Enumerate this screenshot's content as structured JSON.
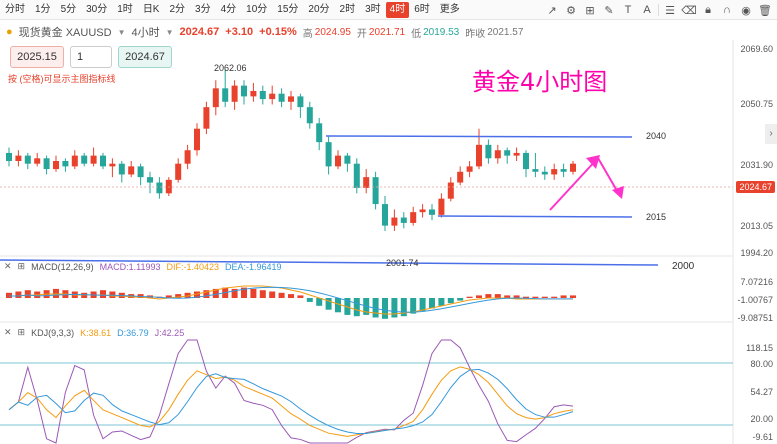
{
  "toolbar": {
    "timeframes": [
      "分时",
      "1分",
      "5分",
      "30分",
      "1时",
      "日K",
      "2分",
      "3分",
      "4分",
      "10分",
      "15分",
      "20分",
      "2时",
      "3时",
      "4时",
      "6时",
      "更多"
    ],
    "active_index": 14,
    "tool_icons": [
      "trend-line-icon",
      "settings-icon",
      "ruler-icon",
      "pen-icon",
      "text-icon",
      "font-size-icon",
      "sliders-icon",
      "eraser-icon",
      "lock-icon",
      "magnet-icon",
      "eye-icon",
      "trash-icon"
    ]
  },
  "symbol": {
    "name": "现货黄金 XAUUSD",
    "period": "4小时",
    "price": "2024.67",
    "change": "+3.10",
    "change_pct": "+0.15%",
    "high_label": "高",
    "high": "2024.95",
    "open_label": "开",
    "open": "2021.71",
    "low_label": "低",
    "low": "2019.53",
    "prev_label": "昨收",
    "prev": "2021.57"
  },
  "order": {
    "sell": "2025.15",
    "qty": "1",
    "buy": "2024.67"
  },
  "hint": "按 (空格)可显示主图指标线",
  "caption": "黄金4小时图",
  "price_axis": [
    "2069.60",
    "2050.75",
    "2031.90",
    "2024.67",
    "2013.05",
    "1994.20"
  ],
  "annotations": {
    "high": "2062.06",
    "low": "2001.74",
    "lvl_2040": "2040",
    "lvl_2015": "2015",
    "lvl_2000": "2000"
  },
  "macd": {
    "label": "MACD(12,26,9)",
    "macd": "MACD:1.11993",
    "dif": "DIF:-1.40423",
    "dea": "DEA:-1.96419",
    "axis": [
      "7.07216",
      "-1.00767",
      "-9.08751"
    ]
  },
  "kdj": {
    "label": "KDJ(9,3,3)",
    "k": "K:38.61",
    "d": "D:36.79",
    "j": "J:42.25",
    "axis": [
      "118.15",
      "80.00",
      "54.27",
      "20.00",
      "-9.61"
    ]
  },
  "colors": {
    "up": "#e8412c",
    "down": "#26a69a",
    "line": "#4a6fe8",
    "arrow": "#ff33cc",
    "accent": "#e8412c"
  }
}
